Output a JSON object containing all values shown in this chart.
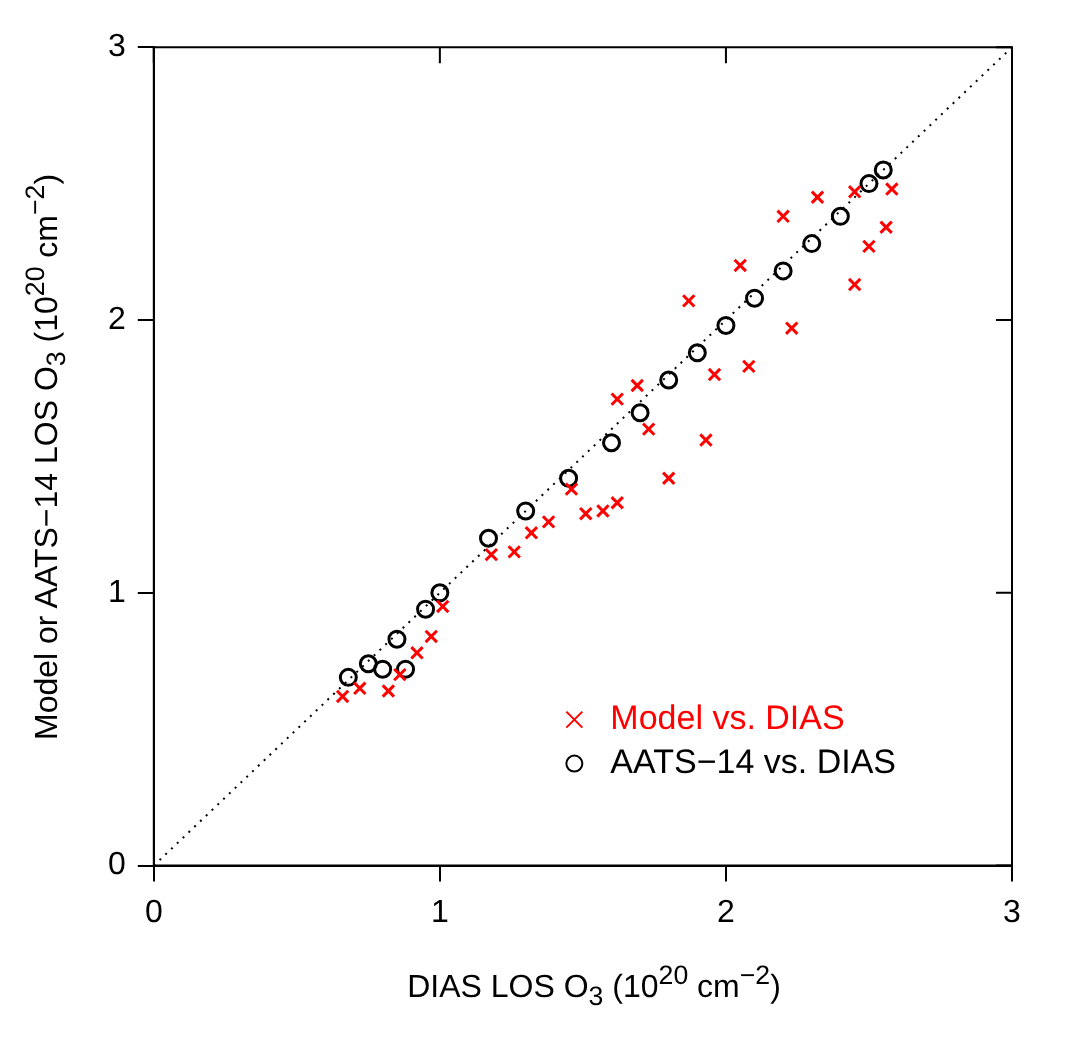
{
  "chart_data": {
    "type": "scatter",
    "xlabel": "DIAS LOS O$_{3}$ (10$^{20}$ cm$^{−2}$)",
    "ylabel": "Model or AATS−14 LOS O$_{3}$ (10$^{20}$ cm$^{−2}$)",
    "xlim": [
      0,
      3
    ],
    "ylim": [
      0,
      3
    ],
    "xticks": [
      0,
      1,
      2,
      3
    ],
    "yticks": [
      0,
      1,
      2,
      3
    ],
    "grid": false,
    "legend": "bottom right",
    "series": [
      {
        "name": "Model vs. DIAS",
        "color": "#ff0000",
        "marker": "cross",
        "x": [
          0.66,
          0.72,
          0.82,
          0.86,
          0.92,
          0.97,
          1.01,
          1.18,
          1.26,
          1.32,
          1.38,
          1.46,
          1.51,
          1.57,
          1.62,
          1.62,
          1.69,
          1.73,
          1.8,
          1.87,
          1.93,
          1.96,
          2.05,
          2.08,
          2.2,
          2.23,
          2.32,
          2.45,
          2.45,
          2.5,
          2.56,
          2.58
        ],
        "values": [
          0.62,
          0.65,
          0.64,
          0.7,
          0.78,
          0.84,
          0.95,
          1.14,
          1.15,
          1.22,
          1.26,
          1.38,
          1.29,
          1.3,
          1.33,
          1.71,
          1.76,
          1.6,
          1.42,
          2.07,
          1.56,
          1.8,
          2.2,
          1.83,
          2.38,
          1.97,
          2.45,
          2.47,
          2.13,
          2.27,
          2.34,
          2.48
        ]
      },
      {
        "name": "AATS−14 vs. DIAS",
        "color": "#000000",
        "marker": "circle",
        "x": [
          0.68,
          0.75,
          0.8,
          0.85,
          0.88,
          0.95,
          1.0,
          1.17,
          1.3,
          1.45,
          1.6,
          1.7,
          1.8,
          1.9,
          2.0,
          2.1,
          2.2,
          2.3,
          2.4,
          2.5,
          2.55
        ],
        "values": [
          0.69,
          0.74,
          0.72,
          0.83,
          0.72,
          0.94,
          1.0,
          1.2,
          1.3,
          1.42,
          1.55,
          1.66,
          1.78,
          1.88,
          1.98,
          2.08,
          2.18,
          2.28,
          2.38,
          2.5,
          2.55
        ]
      },
      {
        "type": "line",
        "color": "#000000",
        "line_style": "dotted",
        "marker": "none",
        "x": [
          0,
          3
        ],
        "values": [
          0,
          3
        ]
      }
    ]
  }
}
